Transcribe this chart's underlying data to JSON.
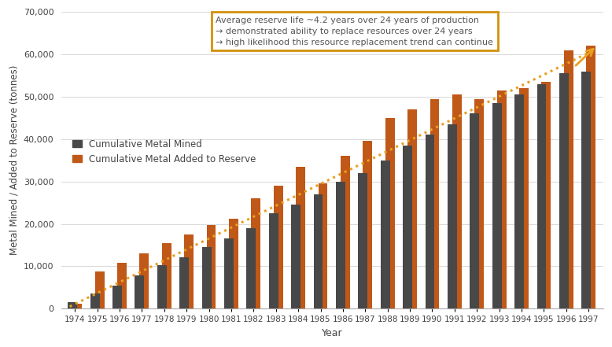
{
  "years": [
    1974,
    1975,
    1976,
    1977,
    1978,
    1979,
    1980,
    1981,
    1982,
    1983,
    1984,
    1985,
    1986,
    1987,
    1988,
    1989,
    1990,
    1991,
    1992,
    1993,
    1994,
    1995,
    1996,
    1997
  ],
  "cumulative_mined": [
    1500,
    3500,
    5500,
    7800,
    10200,
    12200,
    14500,
    16500,
    19000,
    22500,
    24500,
    27000,
    30000,
    32000,
    35000,
    38500,
    41000,
    43500,
    46000,
    48500,
    50500,
    53000,
    55500,
    56000
  ],
  "cumulative_added": [
    1200,
    8800,
    10800,
    13000,
    15500,
    17500,
    19800,
    21200,
    26000,
    29000,
    33500,
    29500,
    36000,
    39500,
    45000,
    47000,
    49500,
    50500,
    49500,
    51500,
    52000,
    53500,
    61000,
    62000
  ],
  "bar_color_mined": "#484848",
  "bar_color_added": "#C05818",
  "dotted_line_color": "#E8A020",
  "background_color": "#FFFFFF",
  "ylabel": "Metal Mined / Added to Reserve (tonnes)",
  "xlabel": "Year",
  "ylim": [
    0,
    70000
  ],
  "yticks": [
    0,
    10000,
    20000,
    30000,
    40000,
    50000,
    60000,
    70000
  ],
  "annotation_text": "Average reserve life ~4.2 years over 24 years of production\n→ demonstrated ability to replace resources over 24 years\n→ high likelihood this resource replacement trend can continue",
  "annotation_box_color": "#D4900A",
  "legend_mined": "Cumulative Metal Mined",
  "legend_added": "Cumulative Metal Added to Reserve"
}
